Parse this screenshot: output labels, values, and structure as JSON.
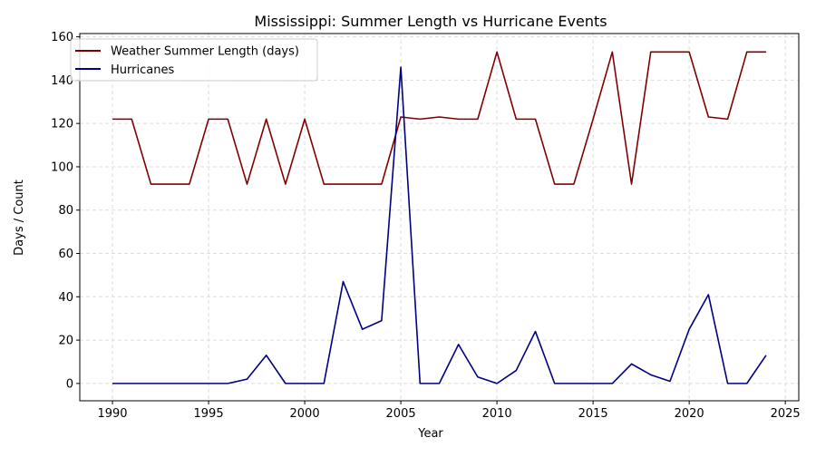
{
  "chart_data": {
    "type": "line",
    "title": "Mississippi: Summer Length vs Hurricane Events",
    "xlabel": "Year",
    "ylabel": "Days / Count",
    "xlim": [
      1988.3,
      2025.7
    ],
    "ylim": [
      -8,
      161.5
    ],
    "xticks": [
      1990,
      1995,
      2000,
      2005,
      2010,
      2015,
      2020,
      2025
    ],
    "yticks": [
      0,
      20,
      40,
      60,
      80,
      100,
      120,
      140,
      160
    ],
    "grid": true,
    "legend_position": "upper-left",
    "x": [
      1990,
      1991,
      1992,
      1993,
      1994,
      1995,
      1996,
      1997,
      1998,
      1999,
      2000,
      2001,
      2002,
      2003,
      2004,
      2005,
      2006,
      2007,
      2008,
      2009,
      2010,
      2011,
      2012,
      2013,
      2014,
      2015,
      2016,
      2017,
      2018,
      2019,
      2020,
      2021,
      2022,
      2023,
      2024
    ],
    "series": [
      {
        "name": "Weather Summer Length (days)",
        "color": "#800000",
        "values": [
          122,
          122,
          92,
          92,
          92,
          122,
          122,
          92,
          122,
          92,
          122,
          92,
          92,
          92,
          92,
          123,
          122,
          123,
          122,
          122,
          153,
          122,
          122,
          92,
          92,
          122,
          153,
          92,
          153,
          153,
          153,
          123,
          122,
          153,
          153
        ]
      },
      {
        "name": "Hurricanes",
        "color": "#000080",
        "values": [
          0,
          0,
          0,
          0,
          0,
          0,
          0,
          2,
          13,
          0,
          0,
          0,
          47,
          25,
          29,
          146,
          0,
          0,
          18,
          3,
          0,
          6,
          24,
          0,
          0,
          0,
          0,
          9,
          4,
          1,
          25,
          41,
          0,
          0,
          13
        ]
      }
    ]
  }
}
